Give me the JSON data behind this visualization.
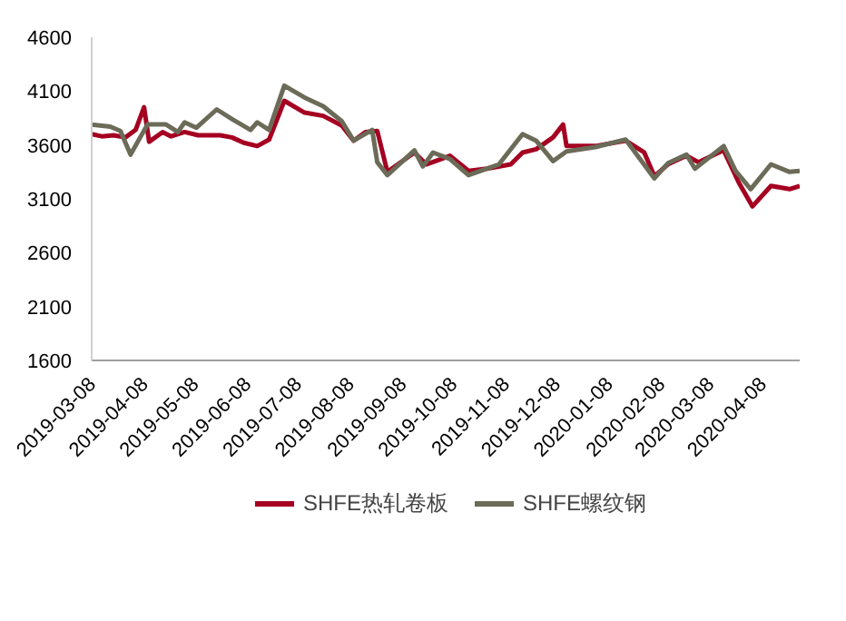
{
  "chart_data": {
    "type": "line",
    "xlim": [
      "2019-03-08",
      "2020-04-30"
    ],
    "ylim": [
      1600,
      4600
    ],
    "yticks": [
      1600,
      2100,
      2600,
      3100,
      3600,
      4100,
      4600
    ],
    "xticks": [
      "2019-03-08",
      "2019-04-08",
      "2019-05-08",
      "2019-06-08",
      "2019-07-08",
      "2019-08-08",
      "2019-09-08",
      "2019-10-08",
      "2019-11-08",
      "2019-12-08",
      "2020-01-08",
      "2020-02-08",
      "2020-03-08",
      "2020-04-08"
    ],
    "grid": false,
    "legend": "bottom",
    "line_style": "solid",
    "marker": "none",
    "series": [
      {
        "name": "SHFE热轧卷板",
        "color": "#a50021",
        "x": [
          "2019-03-08",
          "2019-03-14",
          "2019-03-21",
          "2019-03-28",
          "2019-04-03",
          "2019-04-08",
          "2019-04-11",
          "2019-04-19",
          "2019-04-24",
          "2019-05-02",
          "2019-05-10",
          "2019-05-23",
          "2019-05-30",
          "2019-06-06",
          "2019-06-14",
          "2019-06-21",
          "2019-06-30",
          "2019-07-12",
          "2019-07-23",
          "2019-08-03",
          "2019-08-10",
          "2019-08-17",
          "2019-08-24",
          "2019-08-30",
          "2019-09-15",
          "2019-09-22",
          "2019-10-06",
          "2019-10-17",
          "2019-10-28",
          "2019-11-11",
          "2019-11-18",
          "2019-11-26",
          "2019-12-06",
          "2019-12-12",
          "2019-12-14",
          "2019-12-31",
          "2020-01-18",
          "2020-01-29",
          "2020-02-04",
          "2020-02-12",
          "2020-02-23",
          "2020-03-01",
          "2020-03-16",
          "2020-03-25",
          "2020-04-02",
          "2020-04-13",
          "2020-04-24",
          "2020-04-30"
        ],
        "values": [
          3700,
          3680,
          3690,
          3670,
          3740,
          3950,
          3630,
          3720,
          3680,
          3720,
          3690,
          3690,
          3670,
          3620,
          3590,
          3650,
          4010,
          3900,
          3870,
          3780,
          3640,
          3720,
          3730,
          3350,
          3530,
          3420,
          3500,
          3360,
          3380,
          3420,
          3530,
          3560,
          3670,
          3790,
          3590,
          3590,
          3640,
          3530,
          3310,
          3420,
          3500,
          3440,
          3550,
          3250,
          3030,
          3220,
          3190,
          3220
        ]
      },
      {
        "name": "SHFE螺纹钢",
        "color": "#6b6b58",
        "x": [
          "2019-03-08",
          "2019-03-19",
          "2019-03-25",
          "2019-03-31",
          "2019-04-10",
          "2019-04-21",
          "2019-04-28",
          "2019-05-02",
          "2019-05-09",
          "2019-05-21",
          "2019-05-30",
          "2019-06-10",
          "2019-06-14",
          "2019-06-21",
          "2019-06-30",
          "2019-07-12",
          "2019-07-23",
          "2019-08-03",
          "2019-08-10",
          "2019-08-21",
          "2019-08-24",
          "2019-08-30",
          "2019-09-15",
          "2019-09-20",
          "2019-09-26",
          "2019-10-06",
          "2019-10-17",
          "2019-11-04",
          "2019-11-18",
          "2019-11-26",
          "2019-12-06",
          "2019-12-14",
          "2019-12-31",
          "2020-01-18",
          "2020-02-04",
          "2020-02-12",
          "2020-02-23",
          "2020-02-28",
          "2020-03-16",
          "2020-03-23",
          "2020-04-01",
          "2020-04-13",
          "2020-04-24",
          "2020-04-30"
        ],
        "values": [
          3790,
          3770,
          3730,
          3510,
          3790,
          3790,
          3720,
          3810,
          3760,
          3930,
          3840,
          3740,
          3810,
          3740,
          4150,
          4040,
          3960,
          3820,
          3640,
          3740,
          3440,
          3320,
          3550,
          3400,
          3530,
          3470,
          3320,
          3420,
          3700,
          3640,
          3450,
          3540,
          3580,
          3650,
          3290,
          3430,
          3510,
          3380,
          3590,
          3360,
          3190,
          3420,
          3350,
          3360
        ]
      }
    ]
  }
}
